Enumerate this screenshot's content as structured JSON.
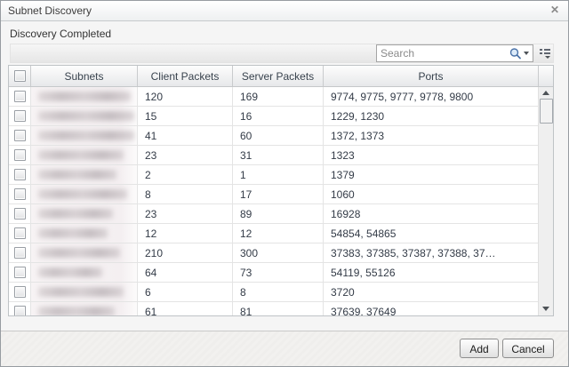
{
  "window": {
    "title": "Subnet Discovery",
    "close_glyph": "✕"
  },
  "status_text": "Discovery Completed",
  "toolbar": {
    "search_placeholder": "Search"
  },
  "table": {
    "subnets_blurred": true,
    "select_all_checked": false,
    "columns": [
      "Subnets",
      "Client Packets",
      "Server Packets",
      "Ports"
    ],
    "rows": [
      {
        "checked": false,
        "subnet": "",
        "client_packets": "120",
        "server_packets": "169",
        "ports": "9774, 9775, 9777, 9778, 9800"
      },
      {
        "checked": false,
        "subnet": "",
        "client_packets": "15",
        "server_packets": "16",
        "ports": "1229, 1230"
      },
      {
        "checked": false,
        "subnet": "",
        "client_packets": "41",
        "server_packets": "60",
        "ports": "1372, 1373"
      },
      {
        "checked": false,
        "subnet": "",
        "client_packets": "23",
        "server_packets": "31",
        "ports": "1323"
      },
      {
        "checked": false,
        "subnet": "",
        "client_packets": "2",
        "server_packets": "1",
        "ports": "1379"
      },
      {
        "checked": false,
        "subnet": "",
        "client_packets": "8",
        "server_packets": "17",
        "ports": "1060"
      },
      {
        "checked": false,
        "subnet": "",
        "client_packets": "23",
        "server_packets": "89",
        "ports": "16928"
      },
      {
        "checked": false,
        "subnet": "",
        "client_packets": "12",
        "server_packets": "12",
        "ports": "54854, 54865"
      },
      {
        "checked": false,
        "subnet": "",
        "client_packets": "210",
        "server_packets": "300",
        "ports": "37383, 37385, 37387, 37388, 37…"
      },
      {
        "checked": false,
        "subnet": "",
        "client_packets": "64",
        "server_packets": "73",
        "ports": "54119, 55126"
      },
      {
        "checked": false,
        "subnet": "",
        "client_packets": "6",
        "server_packets": "8",
        "ports": "3720"
      },
      {
        "checked": false,
        "subnet": "",
        "client_packets": "61",
        "server_packets": "81",
        "ports": "37639, 37649"
      }
    ]
  },
  "footer": {
    "add_label": "Add",
    "cancel_label": "Cancel"
  }
}
